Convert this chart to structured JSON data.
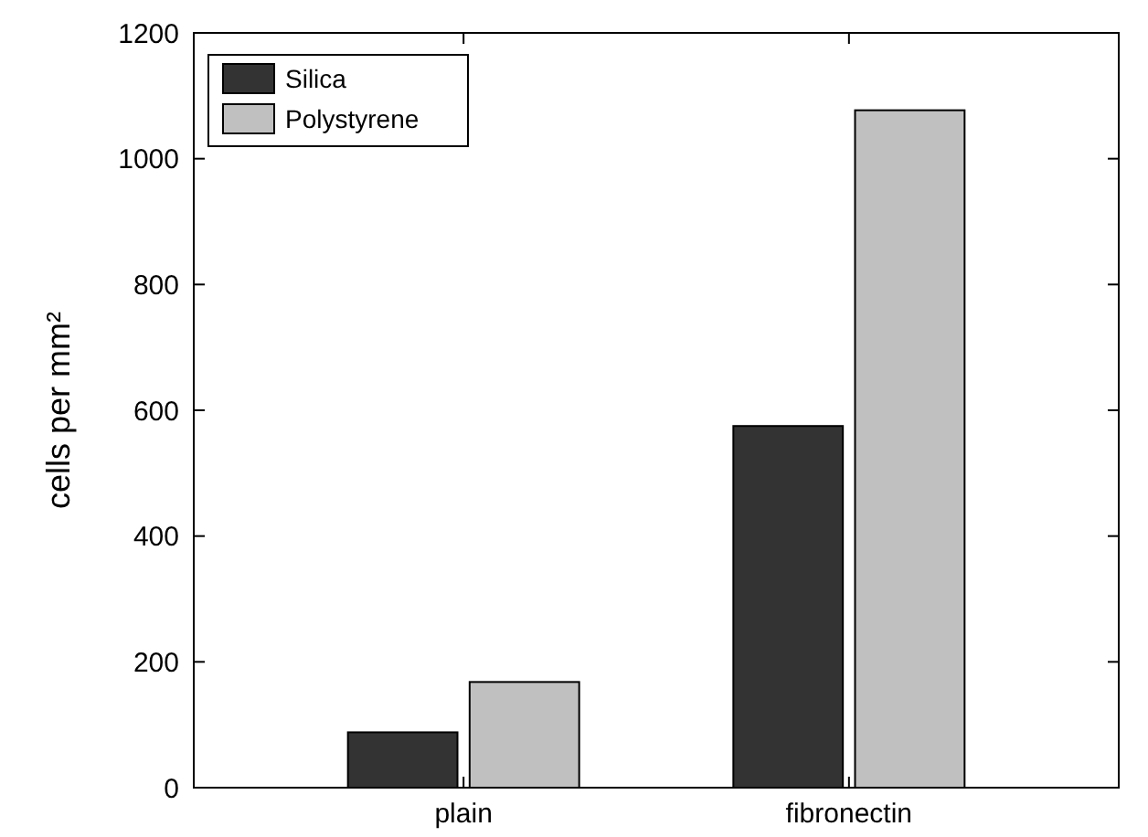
{
  "chart_data": {
    "type": "bar",
    "ylabel": "cells per mm²",
    "categories": [
      "plain",
      "fibronectin"
    ],
    "series": [
      {
        "name": "Silica",
        "color": "#333333",
        "values": [
          88,
          575
        ]
      },
      {
        "name": "Polystyrene",
        "color": "#c0c0c0",
        "values": [
          168,
          1077
        ]
      }
    ],
    "ylim": [
      0,
      1200
    ],
    "yticks": [
      0,
      200,
      400,
      600,
      800,
      1000,
      1200
    ],
    "legend": "top left",
    "grid": false
  }
}
